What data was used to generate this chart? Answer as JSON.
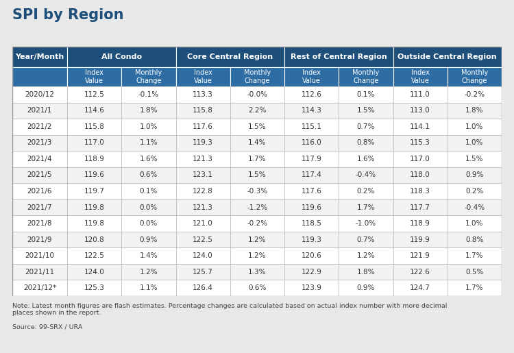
{
  "title": "SPI by Region",
  "note": "Note: Latest month figures are flash estimates. Percentage changes are calculated based on actual index number with more decimal\nplaces shown in the report.",
  "source": "Source: 99-SRX / URA",
  "header_bg": "#1e4f7a",
  "subheader_bg": "#2e6da4",
  "header_text_color": "#ffffff",
  "row_text_color": "#333333",
  "border_color": "#bbbbbb",
  "alt_row_color": "#f2f2f2",
  "white_row_color": "#ffffff",
  "outer_bg": "#e8e8e8",
  "table_bg": "#ffffff",
  "title_color": "#1e4f7a",
  "col_groups": [
    "Year/Month",
    "All Condo",
    "Core Central Region",
    "Rest of Central Region",
    "Outside Central Region"
  ],
  "sub_headers": [
    "",
    "Index\nValue",
    "Monthly\nChange",
    "Index\nValue",
    "Monthly\nChange",
    "Index\nValue",
    "Monthly\nChange",
    "Index\nValue",
    "Monthly\nChange"
  ],
  "rows": [
    [
      "2020/12",
      "112.5",
      "-0.1%",
      "113.3",
      "-0.0%",
      "112.6",
      "0.1%",
      "111.0",
      "-0.2%"
    ],
    [
      "2021/1",
      "114.6",
      "1.8%",
      "115.8",
      "2.2%",
      "114.3",
      "1.5%",
      "113.0",
      "1.8%"
    ],
    [
      "2021/2",
      "115.8",
      "1.0%",
      "117.6",
      "1.5%",
      "115.1",
      "0.7%",
      "114.1",
      "1.0%"
    ],
    [
      "2021/3",
      "117.0",
      "1.1%",
      "119.3",
      "1.4%",
      "116.0",
      "0.8%",
      "115.3",
      "1.0%"
    ],
    [
      "2021/4",
      "118.9",
      "1.6%",
      "121.3",
      "1.7%",
      "117.9",
      "1.6%",
      "117.0",
      "1.5%"
    ],
    [
      "2021/5",
      "119.6",
      "0.6%",
      "123.1",
      "1.5%",
      "117.4",
      "-0.4%",
      "118.0",
      "0.9%"
    ],
    [
      "2021/6",
      "119.7",
      "0.1%",
      "122.8",
      "-0.3%",
      "117.6",
      "0.2%",
      "118.3",
      "0.2%"
    ],
    [
      "2021/7",
      "119.8",
      "0.0%",
      "121.3",
      "-1.2%",
      "119.6",
      "1.7%",
      "117.7",
      "-0.4%"
    ],
    [
      "2021/8",
      "119.8",
      "0.0%",
      "121.0",
      "-0.2%",
      "118.5",
      "-1.0%",
      "118.9",
      "1.0%"
    ],
    [
      "2021/9",
      "120.8",
      "0.9%",
      "122.5",
      "1.2%",
      "119.3",
      "0.7%",
      "119.9",
      "0.8%"
    ],
    [
      "2021/10",
      "122.5",
      "1.4%",
      "124.0",
      "1.2%",
      "120.6",
      "1.2%",
      "121.9",
      "1.7%"
    ],
    [
      "2021/11",
      "124.0",
      "1.2%",
      "125.7",
      "1.3%",
      "122.9",
      "1.8%",
      "122.6",
      "0.5%"
    ],
    [
      "2021/12*",
      "125.3",
      "1.1%",
      "126.4",
      "0.6%",
      "123.9",
      "0.9%",
      "124.7",
      "1.7%"
    ]
  ]
}
